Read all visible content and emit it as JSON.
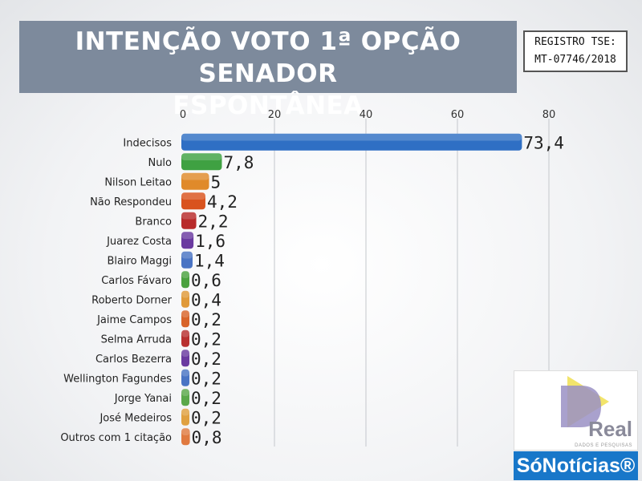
{
  "header": {
    "title_line1": "INTENÇÃO VOTO 1ª OPÇÃO SENADOR",
    "title_line2": "ESPONTÂNEA",
    "registro_line1": "REGISTRO TSE:",
    "registro_line2": "MT-07746/2018"
  },
  "logos": {
    "real_text": "Real",
    "real_subtext": "DADOS E PESQUISAS",
    "sonoticias_text": "SóNotícias®",
    "colors": {
      "real_triangle": "#f2e46b",
      "real_d": "#9a90c4",
      "sonoticias_bg": "#1877c9"
    }
  },
  "chart_data": {
    "type": "bar",
    "orientation": "horizontal",
    "title": "INTENÇÃO VOTO 1ª OPÇÃO SENADOR ESPONTÂNEA",
    "xlim": [
      0,
      80
    ],
    "xticks": [
      "0",
      "20",
      "40",
      "60",
      "80"
    ],
    "grid": true,
    "categories": [
      "Indecisos",
      "Nulo",
      "Nilson Leitao",
      "Não Respondeu",
      "Branco",
      "Juarez Costa",
      "Blairo Maggi",
      "Carlos Fávaro",
      "Roberto Dorner",
      "Jaime Campos",
      "Selma Arruda",
      "Carlos Bezerra",
      "Wellington Fagundes",
      "Jorge Yanai",
      "José Medeiros",
      "Outros com 1 citação"
    ],
    "values": [
      73.4,
      7.8,
      5,
      4.2,
      2.2,
      1.6,
      1.4,
      0.6,
      0.4,
      0.2,
      0.2,
      0.2,
      0.2,
      0.2,
      0.2,
      0.8
    ],
    "value_labels": [
      "73,4",
      "7,8",
      "5",
      "4,2",
      "2,2",
      "1,6",
      "1,4",
      "0,6",
      "0,4",
      "0,2",
      "0,2",
      "0,2",
      "0,2",
      "0,2",
      "0,2",
      "0,8"
    ],
    "colors": [
      "#2f6fc4",
      "#3fa142",
      "#e08a2a",
      "#d9531e",
      "#b82a2a",
      "#6a3aa0",
      "#4a74c4",
      "#4aa13f",
      "#e09a3a",
      "#d8642a",
      "#b83030",
      "#6a3aa0",
      "#4a74c4",
      "#5aa84a",
      "#e0a040",
      "#e07a40"
    ]
  }
}
